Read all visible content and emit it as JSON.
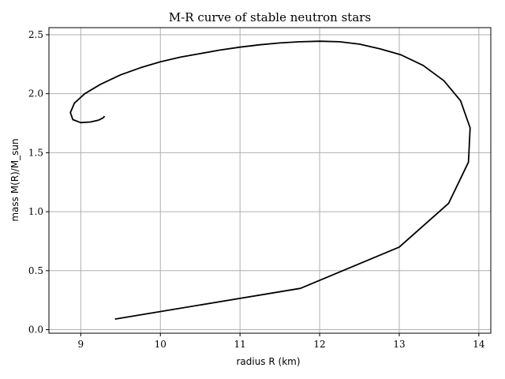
{
  "chart_data": {
    "type": "line",
    "title": "M-R curve of stable neutron stars",
    "xlabel": "radius R (km)",
    "ylabel": "mass M(R)/M_sun",
    "xlim": [
      8.6,
      14.15
    ],
    "ylim": [
      -0.03,
      2.56
    ],
    "xticks": [
      9,
      10,
      11,
      12,
      13,
      14
    ],
    "xtick_labels": [
      "9",
      "10",
      "11",
      "12",
      "13",
      "14"
    ],
    "yticks": [
      0.0,
      0.5,
      1.0,
      1.5,
      2.0,
      2.5
    ],
    "ytick_labels": [
      "0.0",
      "0.5",
      "1.0",
      "1.5",
      "2.0",
      "2.5"
    ],
    "grid": true,
    "line_color": "#000000",
    "grid_color": "#b0b0b0",
    "series": [
      {
        "x": [
          9.43,
          11.76,
          13.0,
          13.62,
          13.87,
          13.89,
          13.77,
          13.56,
          13.3,
          13.02,
          12.76,
          12.5,
          12.25,
          12.0,
          11.75,
          11.5,
          11.25,
          11.0,
          10.75,
          10.5,
          10.25,
          10.0,
          9.75,
          9.5,
          9.25,
          9.05,
          8.92,
          8.87,
          8.9,
          9.0,
          9.12,
          9.22,
          9.28,
          9.3
        ],
        "y": [
          0.09,
          0.35,
          0.7,
          1.07,
          1.42,
          1.71,
          1.94,
          2.11,
          2.24,
          2.33,
          2.38,
          2.42,
          2.44,
          2.445,
          2.44,
          2.43,
          2.415,
          2.395,
          2.37,
          2.34,
          2.31,
          2.27,
          2.22,
          2.16,
          2.08,
          2.0,
          1.92,
          1.84,
          1.78,
          1.755,
          1.76,
          1.775,
          1.795,
          1.81
        ]
      }
    ]
  }
}
